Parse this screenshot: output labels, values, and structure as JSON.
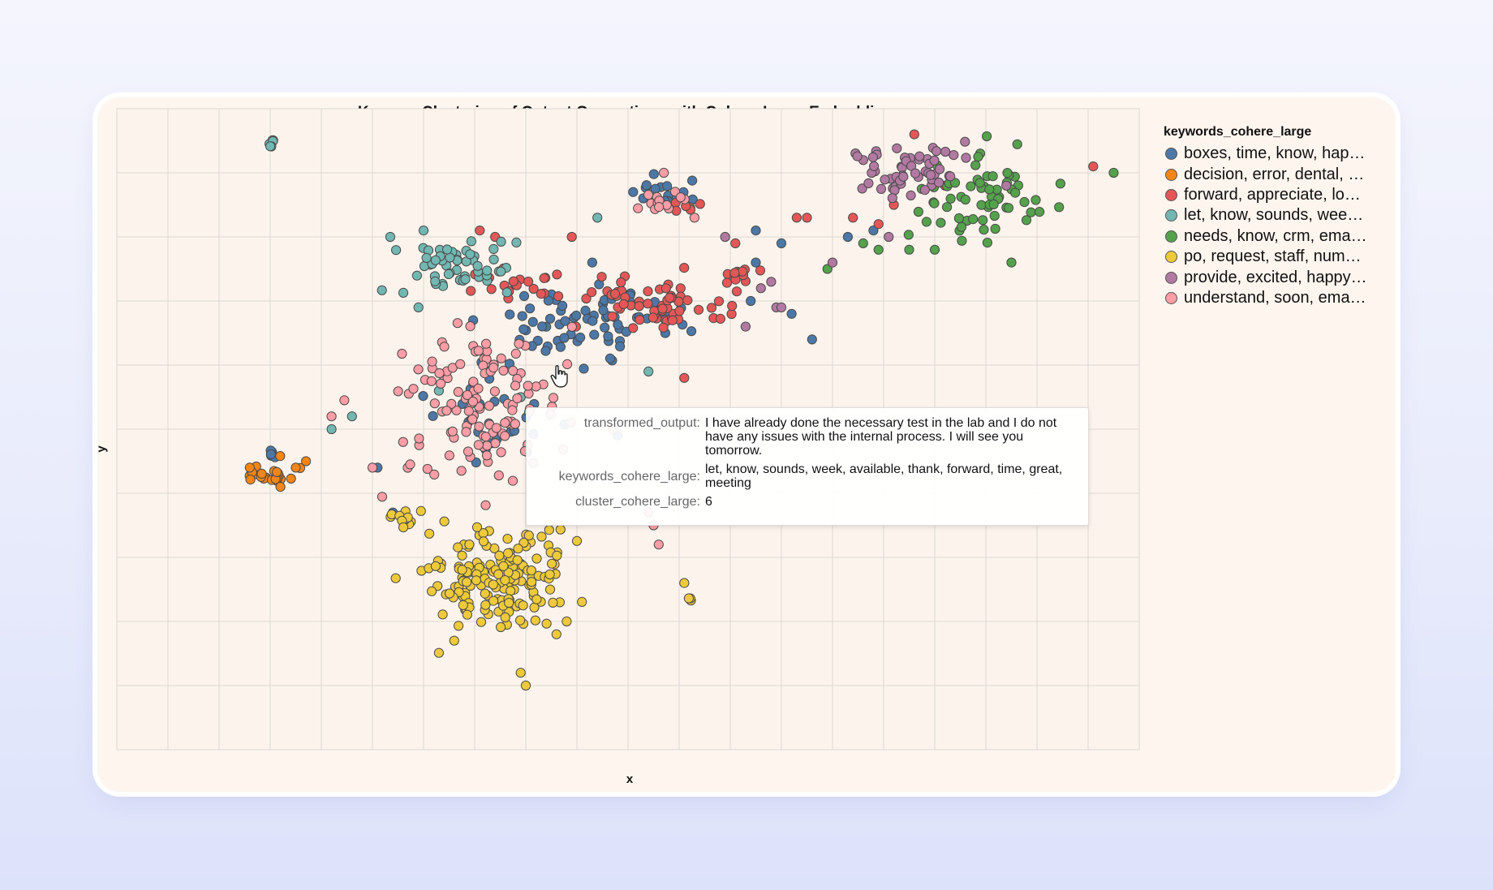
{
  "chart_data": {
    "type": "scatter",
    "title": "Kmeans Clustering of Output Generations with Cohere Large Embeddings",
    "xlabel": "x",
    "ylabel": "y",
    "xlim": [
      0,
      20
    ],
    "ylim": [
      0,
      10
    ],
    "grid": true,
    "legend_position": "right",
    "legend_title": "keywords_cohere_large",
    "series": [
      {
        "name": "boxes, time, know, hap…",
        "color": "#4c78a8",
        "clusters": [
          [
            10.7,
            8.7,
            0.5,
            0.22,
            16
          ],
          [
            9.3,
            6.6,
            1.7,
            0.5,
            70
          ],
          [
            7.4,
            5.0,
            1.0,
            0.6,
            24
          ],
          [
            2.95,
            4.6,
            0.12,
            0.08,
            5
          ]
        ],
        "points": [
          [
            10.1,
            8.7
          ],
          [
            12.5,
            8.1
          ],
          [
            13.0,
            7.9
          ],
          [
            14.3,
            8.0
          ],
          [
            12.5,
            7.6
          ],
          [
            5.1,
            4.4
          ],
          [
            5.4,
            3.7
          ],
          [
            9.3,
            7.6
          ],
          [
            7.9,
            2.9
          ],
          [
            13.2,
            6.8
          ],
          [
            13.6,
            6.4
          ],
          [
            14.8,
            8.1
          ],
          [
            12.4,
            7.0
          ],
          [
            9.8,
            4.9
          ]
        ]
      },
      {
        "name": "decision, error, dental, …",
        "color": "#f58518",
        "clusters": [
          [
            3.0,
            4.32,
            0.45,
            0.15,
            25
          ]
        ],
        "points": [
          [
            3.5,
            4.4
          ],
          [
            3.7,
            4.5
          ],
          [
            2.6,
            4.4
          ],
          [
            3.2,
            4.1
          ]
        ]
      },
      {
        "name": "forward, appreciate, lo…",
        "color": "#e45756",
        "clusters": [
          [
            10.5,
            7.0,
            1.3,
            0.4,
            60
          ],
          [
            7.8,
            7.35,
            0.9,
            0.4,
            20
          ],
          [
            12.2,
            7.4,
            0.6,
            0.15,
            12
          ],
          [
            11.2,
            8.4,
            0.3,
            0.15,
            6
          ]
        ],
        "points": [
          [
            13.3,
            8.3
          ],
          [
            13.5,
            8.3
          ],
          [
            14.4,
            8.3
          ],
          [
            14.9,
            8.2
          ],
          [
            15.6,
            9.6
          ],
          [
            15.2,
            8.5
          ],
          [
            16.2,
            8.8
          ],
          [
            19.1,
            9.1
          ],
          [
            12.1,
            7.9
          ],
          [
            11.1,
            5.8
          ],
          [
            7.4,
            8.0
          ],
          [
            7.1,
            8.1
          ],
          [
            8.9,
            8.0
          ]
        ]
      },
      {
        "name": "let, know, sounds, wee…",
        "color": "#72b7b2",
        "clusters": [
          [
            6.6,
            7.5,
            0.9,
            0.45,
            55
          ],
          [
            3.0,
            9.45,
            0.1,
            0.07,
            6
          ]
        ],
        "points": [
          [
            5.35,
            8.0
          ],
          [
            6.0,
            8.1
          ],
          [
            9.4,
            8.3
          ],
          [
            4.6,
            5.2
          ],
          [
            4.2,
            5.0
          ],
          [
            5.9,
            6.9
          ],
          [
            7.9,
            5.5
          ],
          [
            10.4,
            5.9
          ],
          [
            6.3,
            5.6
          ]
        ]
      },
      {
        "name": "needs, know, crm, ema…",
        "color": "#54a24b",
        "clusters": [
          [
            17.0,
            8.6,
            1.1,
            0.6,
            65
          ]
        ],
        "points": [
          [
            14.6,
            7.9
          ],
          [
            14.9,
            7.8
          ],
          [
            15.5,
            7.8
          ],
          [
            16.0,
            7.8
          ],
          [
            17.5,
            7.6
          ],
          [
            13.9,
            7.5
          ],
          [
            19.5,
            9.0
          ]
        ]
      },
      {
        "name": "po, request, staff, num…",
        "color": "#eeca3b",
        "clusters": [
          [
            7.4,
            2.7,
            1.3,
            0.75,
            160
          ],
          [
            5.6,
            3.6,
            0.25,
            0.12,
            12
          ],
          [
            11.25,
            2.35,
            0.08,
            0.05,
            3
          ]
        ],
        "points": [
          [
            11.1,
            2.6
          ],
          [
            8.6,
            1.8
          ],
          [
            8.8,
            2.0
          ],
          [
            6.6,
            1.7
          ],
          [
            7.9,
            1.2
          ],
          [
            8.0,
            1.0
          ]
        ]
      },
      {
        "name": "provide, excited, happy…",
        "color": "#b279a2",
        "clusters": [
          [
            15.4,
            9.0,
            1.0,
            0.45,
            55
          ]
        ],
        "points": [
          [
            12.8,
            7.3
          ],
          [
            12.9,
            6.9
          ],
          [
            13.0,
            6.9
          ],
          [
            12.3,
            6.6
          ],
          [
            11.9,
            8.0
          ],
          [
            12.6,
            7.2
          ],
          [
            14.0,
            7.6
          ],
          [
            15.1,
            8.0
          ],
          [
            17.4,
            8.8
          ]
        ]
      },
      {
        "name": "understand, soon, ema…",
        "color": "#ff9da6",
        "clusters": [
          [
            7.2,
            5.4,
            1.5,
            1.1,
            125
          ],
          [
            10.7,
            8.55,
            0.5,
            0.2,
            15
          ]
        ],
        "points": [
          [
            4.45,
            5.45
          ],
          [
            4.2,
            5.2
          ],
          [
            5.0,
            4.4
          ],
          [
            5.6,
            4.8
          ],
          [
            10.4,
            3.7
          ],
          [
            10.5,
            3.5
          ],
          [
            10.6,
            3.2
          ],
          [
            11.3,
            8.3
          ],
          [
            10.7,
            9.0
          ],
          [
            9.7,
            5.0
          ]
        ]
      }
    ],
    "tooltip": {
      "rows": [
        {
          "key": "transformed_output:",
          "value": "I have already done the necessary test in the lab and I do not have any issues with the internal process. I will see you tomorrow."
        },
        {
          "key": "keywords_cohere_large:",
          "value": "let, know, sounds, week, available, thank, forward, time, great, meeting"
        },
        {
          "key": "cluster_cohere_large:",
          "value": "6"
        }
      ]
    }
  }
}
